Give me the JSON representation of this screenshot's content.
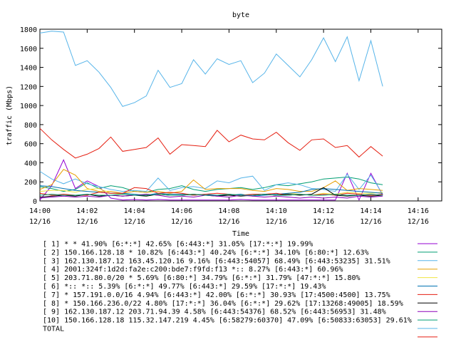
{
  "chart_data": {
    "type": "line",
    "title": "byte",
    "xlabel": "Time",
    "ylabel": "traffic (Mbps)",
    "ylim": [
      0,
      1800
    ],
    "yticks": [
      0,
      200,
      400,
      600,
      800,
      1000,
      1200,
      1400,
      1600,
      1800
    ],
    "xlim": [
      0,
      17
    ],
    "xticks": [
      {
        "x": 0,
        "time": "14:00",
        "date": "12/16"
      },
      {
        "x": 2,
        "time": "14:02",
        "date": "12/16"
      },
      {
        "x": 4,
        "time": "14:04",
        "date": "12/16"
      },
      {
        "x": 6,
        "time": "14:06",
        "date": "12/16"
      },
      {
        "x": 8,
        "time": "14:08",
        "date": "12/16"
      },
      {
        "x": 10,
        "time": "14:10",
        "date": "12/16"
      },
      {
        "x": 12,
        "time": "14:12",
        "date": "12/16"
      },
      {
        "x": 14,
        "time": "14:14",
        "date": "12/16"
      },
      {
        "x": 16,
        "time": "14:16",
        "date": "12/16"
      }
    ],
    "x": [
      0,
      0.5,
      1,
      1.5,
      2,
      2.5,
      3,
      3.5,
      4,
      4.5,
      5,
      5.5,
      6,
      6.5,
      7,
      7.5,
      8,
      8.5,
      9,
      9.5,
      10,
      10.5,
      11,
      11.5,
      12,
      12.5,
      13,
      13.5,
      14,
      14.5
    ],
    "grid": false,
    "legend_position": "below",
    "series": [
      {
        "name": "[ 1] * * 41.90% [6:*:*] 42.65% [6:443:*] 31.05% [17:*:*] 19.99%",
        "color": "#9400d3",
        "values": [
          10,
          160,
          430,
          130,
          210,
          150,
          30,
          10,
          15,
          10,
          15,
          10,
          10,
          10,
          10,
          10,
          10,
          15,
          10,
          10,
          10,
          10,
          10,
          10,
          10,
          10,
          290,
          10,
          290,
          60
        ]
      },
      {
        "name": "[ 2] 150.166.128.18 * 10.82% [6:443:*] 40.24% [6:*:*] 34.10% [6:80:*] 12.63%",
        "color": "#009e73",
        "values": [
          150,
          130,
          100,
          120,
          190,
          130,
          160,
          140,
          100,
          90,
          120,
          130,
          160,
          120,
          100,
          120,
          130,
          140,
          120,
          140,
          170,
          160,
          180,
          200,
          230,
          240,
          250,
          230,
          190,
          170
        ]
      },
      {
        "name": "[ 3] 162.130.187.12 163.45.120.16 9.16% [6:443:54057] 68.49% [6:443:53235] 31.51%",
        "color": "#56b4e9",
        "values": [
          310,
          230,
          180,
          230,
          180,
          150,
          120,
          100,
          110,
          100,
          240,
          110,
          140,
          150,
          130,
          210,
          190,
          240,
          260,
          110,
          170,
          190,
          170,
          130,
          120,
          100,
          280,
          120,
          270,
          70
        ]
      },
      {
        "name": "[ 4] 2001:324f:1d2d:fa2e:c200:bde7:f9fd:f13 *:: 8.27% [6:443:*] 60.96%",
        "color": "#e69f00",
        "values": [
          120,
          170,
          330,
          270,
          130,
          100,
          100,
          80,
          100,
          90,
          100,
          80,
          100,
          220,
          120,
          130,
          130,
          130,
          110,
          100,
          130,
          120,
          100,
          100,
          140,
          210,
          110,
          130,
          120,
          110
        ]
      },
      {
        "name": "[ 5] 203.71.80.0/20 * 5.69% [6:80:*] 34.79% [6:*:*] 31.79% [47:*:*] 15.80%",
        "color": "#f0e442",
        "values": [
          100,
          110,
          110,
          90,
          120,
          130,
          80,
          70,
          60,
          70,
          60,
          70,
          70,
          70,
          60,
          60,
          70,
          60,
          60,
          70,
          60,
          80,
          70,
          60,
          80,
          70,
          90,
          80,
          80,
          90
        ]
      },
      {
        "name": "[ 6] *:: *:: 5.39% [6:*:*] 49.77% [6:443:*] 29.59% [17:*:*] 19.43%",
        "color": "#0072b2",
        "values": [
          160,
          150,
          130,
          110,
          100,
          90,
          80,
          80,
          70,
          60,
          80,
          70,
          70,
          60,
          70,
          60,
          60,
          70,
          50,
          60,
          70,
          80,
          90,
          120,
          130,
          120,
          110,
          100,
          90,
          80
        ]
      },
      {
        "name": "[ 7] * 157.191.0.0/16 4.94% [6:443:*] 42.00% [6:*:*] 30.93% [17:4500:4500] 13.75%",
        "color": "#e51e10",
        "values": [
          80,
          60,
          70,
          60,
          60,
          90,
          80,
          80,
          140,
          130,
          80,
          90,
          80,
          60,
          70,
          80,
          70,
          60,
          70,
          70,
          80,
          60,
          70,
          60,
          70,
          60,
          80,
          70,
          60,
          70
        ]
      },
      {
        "name": "[ 8] * 150.166.236.0/22 4.80% [17:*:*] 36.04% [6:*:*] 29.62% [17:13268:49005] 18.59%",
        "color": "#000000",
        "values": [
          40,
          50,
          60,
          50,
          70,
          50,
          60,
          50,
          60,
          50,
          70,
          60,
          60,
          70,
          60,
          50,
          60,
          50,
          60,
          70,
          60,
          70,
          60,
          70,
          140,
          60,
          50,
          60,
          50,
          60
        ]
      },
      {
        "name": "[ 9] 162.130.187.12 203.71.94.39 4.58% [6:443:54376] 68.52% [6:443:56953] 31.48%",
        "color": "#8b00b8",
        "values": [
          30,
          40,
          50,
          40,
          50,
          40,
          60,
          50,
          60,
          70,
          60,
          40,
          50,
          40,
          60,
          50,
          40,
          60,
          50,
          40,
          50,
          40,
          30,
          40,
          30,
          40,
          30,
          50,
          40,
          50
        ]
      },
      {
        "name": "[10] 150.166.128.18 115.32.147.219 4.45% [6:58279:60370] 47.09% [6:50833:63053] 29.61%",
        "color": "#009e73",
        "values": [
          60,
          70,
          60,
          60,
          70,
          60,
          60,
          70,
          60,
          60,
          70,
          60,
          60,
          70,
          60,
          60,
          70,
          60,
          60,
          70,
          60,
          60,
          70,
          60,
          60,
          70,
          60,
          60,
          70,
          60
        ]
      },
      {
        "name": "TOTAL",
        "color": "#56b4e9",
        "values": [
          1760,
          1780,
          1770,
          1420,
          1470,
          1350,
          1190,
          990,
          1030,
          1100,
          1370,
          1190,
          1230,
          1480,
          1330,
          1490,
          1430,
          1470,
          1240,
          1340,
          1540,
          1420,
          1300,
          1480,
          1710,
          1460,
          1720,
          1260,
          1680,
          1200
        ]
      },
      {
        "name": "",
        "color": "#e51e10",
        "values": [
          760,
          640,
          540,
          450,
          490,
          550,
          670,
          520,
          540,
          560,
          660,
          490,
          590,
          580,
          570,
          740,
          620,
          690,
          650,
          640,
          720,
          610,
          530,
          640,
          650,
          560,
          580,
          460,
          570,
          470
        ]
      }
    ]
  }
}
